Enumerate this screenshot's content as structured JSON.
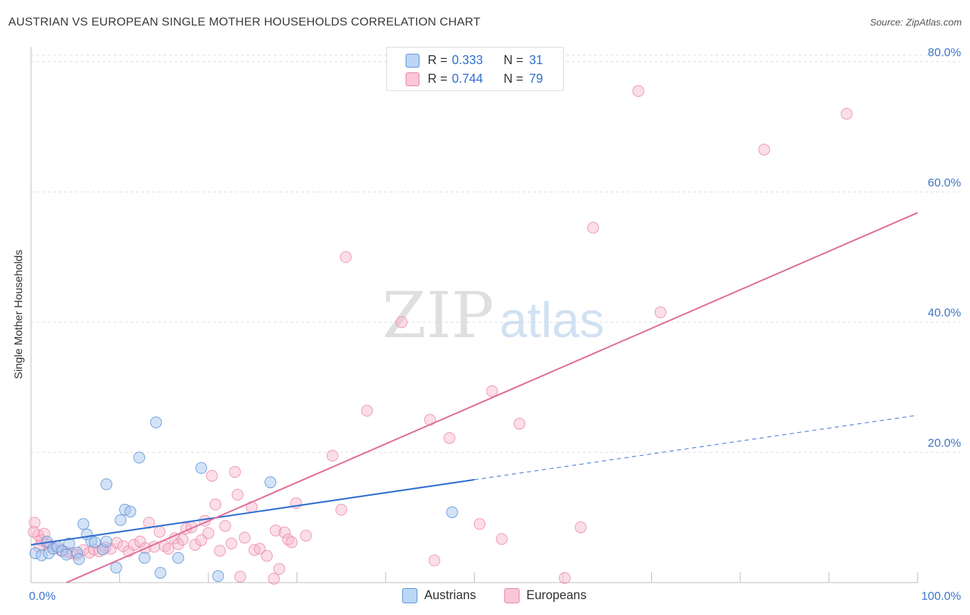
{
  "header": {
    "title": "AUSTRIAN VS EUROPEAN SINGLE MOTHER HOUSEHOLDS CORRELATION CHART",
    "source": "Source: ZipAtlas.com"
  },
  "watermark": {
    "zip": "ZIP",
    "atlas": "atlas"
  },
  "legend": {
    "austrians": {
      "r_label": "R =",
      "r_value": "0.333",
      "n_label": "N =",
      "n_value": "31"
    },
    "europeans": {
      "r_label": "R =",
      "r_value": "0.744",
      "n_label": "N =",
      "n_value": "79"
    }
  },
  "bottom_legend": {
    "austrians": "Austrians",
    "europeans": "Europeans"
  },
  "colors": {
    "austrians_fill": "#a8c8f0",
    "austrians_stroke": "#5b8fd6",
    "austrians_line": "#2f6fd0",
    "europeans_fill": "#f7b6c9",
    "europeans_stroke": "#e882a3",
    "europeans_line": "#e0709a",
    "tick_text": "#3f76c8",
    "grid": "#dddddd"
  },
  "chart_data": {
    "type": "scatter",
    "title": "AUSTRIAN VS EUROPEAN SINGLE MOTHER HOUSEHOLDS CORRELATION CHART",
    "xlabel": "",
    "ylabel": "Single Mother Households",
    "xlim": [
      0,
      100
    ],
    "ylim": [
      0,
      81
    ],
    "x_tick_labels": [
      {
        "value": 0,
        "label": "0.0%"
      },
      {
        "value": 100,
        "label": "100.0%"
      }
    ],
    "y_tick_labels": [
      {
        "value": 20,
        "label": "20.0%"
      },
      {
        "value": 40,
        "label": "40.0%"
      },
      {
        "value": 60,
        "label": "60.0%"
      },
      {
        "value": 80,
        "label": "80.0%"
      }
    ],
    "x_minor_ticks": [
      10,
      20,
      30,
      40,
      50,
      60,
      70,
      80,
      90
    ],
    "series": [
      {
        "name": "Austrians",
        "r": 0.333,
        "n": 31,
        "trend": {
          "x0": 0,
          "y0": 5.8,
          "x1": 50,
          "y1": 15.8,
          "dashed_to_x": 100,
          "dashed_to_y": 25.7
        },
        "points": [
          [
            0.5,
            4.5
          ],
          [
            1.2,
            4.2
          ],
          [
            1.8,
            6.3
          ],
          [
            2.0,
            4.5
          ],
          [
            2.5,
            5.2
          ],
          [
            3.0,
            5.5
          ],
          [
            3.5,
            4.9
          ],
          [
            4.0,
            4.3
          ],
          [
            4.3,
            6.0
          ],
          [
            5.2,
            4.6
          ],
          [
            5.4,
            3.6
          ],
          [
            5.9,
            9.0
          ],
          [
            6.3,
            7.4
          ],
          [
            6.8,
            6.4
          ],
          [
            7.2,
            6.2
          ],
          [
            8.1,
            5.1
          ],
          [
            8.5,
            6.3
          ],
          [
            8.5,
            15.1
          ],
          [
            9.6,
            2.3
          ],
          [
            10.1,
            9.6
          ],
          [
            10.6,
            11.2
          ],
          [
            11.2,
            10.9
          ],
          [
            12.2,
            19.2
          ],
          [
            12.8,
            3.8
          ],
          [
            14.1,
            24.6
          ],
          [
            14.6,
            1.5
          ],
          [
            16.6,
            3.8
          ],
          [
            19.2,
            17.6
          ],
          [
            21.1,
            1.0
          ],
          [
            27.0,
            15.4
          ],
          [
            47.5,
            10.8
          ]
        ]
      },
      {
        "name": "Europeans",
        "r": 0.744,
        "n": 79,
        "trend": {
          "x0": 4,
          "y0": 0,
          "x1": 100,
          "y1": 56.8
        },
        "points": [
          [
            0.4,
            9.2
          ],
          [
            0.8,
            7.3
          ],
          [
            1.2,
            6.5
          ],
          [
            1.8,
            5.9
          ],
          [
            2.2,
            5.6
          ],
          [
            2.8,
            5.3
          ],
          [
            3.4,
            4.9
          ],
          [
            4.0,
            4.7
          ],
          [
            4.6,
            4.5
          ],
          [
            5.2,
            4.3
          ],
          [
            5.9,
            5.0
          ],
          [
            6.6,
            4.6
          ],
          [
            7.1,
            5.1
          ],
          [
            7.7,
            4.8
          ],
          [
            8.4,
            5.4
          ],
          [
            9.0,
            5.2
          ],
          [
            9.7,
            6.1
          ],
          [
            10.4,
            5.6
          ],
          [
            11.0,
            4.8
          ],
          [
            11.6,
            5.8
          ],
          [
            12.3,
            6.3
          ],
          [
            12.9,
            5.3
          ],
          [
            13.3,
            9.2
          ],
          [
            13.9,
            5.5
          ],
          [
            14.5,
            7.8
          ],
          [
            15.1,
            5.6
          ],
          [
            15.5,
            5.2
          ],
          [
            16.2,
            6.8
          ],
          [
            16.6,
            5.9
          ],
          [
            17.1,
            6.6
          ],
          [
            17.5,
            8.3
          ],
          [
            18.1,
            8.5
          ],
          [
            18.5,
            5.8
          ],
          [
            19.2,
            6.5
          ],
          [
            19.6,
            9.5
          ],
          [
            20.0,
            7.6
          ],
          [
            20.4,
            16.4
          ],
          [
            20.8,
            12.0
          ],
          [
            21.3,
            4.9
          ],
          [
            21.9,
            8.7
          ],
          [
            22.6,
            6.0
          ],
          [
            23.0,
            17.0
          ],
          [
            23.3,
            13.5
          ],
          [
            23.6,
            0.9
          ],
          [
            24.1,
            6.9
          ],
          [
            24.9,
            11.6
          ],
          [
            25.2,
            5.0
          ],
          [
            25.8,
            5.2
          ],
          [
            26.6,
            4.1
          ],
          [
            27.4,
            0.6
          ],
          [
            27.6,
            8.0
          ],
          [
            28.0,
            2.1
          ],
          [
            28.6,
            7.7
          ],
          [
            29.0,
            6.6
          ],
          [
            29.4,
            6.2
          ],
          [
            29.9,
            12.2
          ],
          [
            31.0,
            7.2
          ],
          [
            34.0,
            19.5
          ],
          [
            35.0,
            11.2
          ],
          [
            35.5,
            50.0
          ],
          [
            37.9,
            26.4
          ],
          [
            41.8,
            40.0
          ],
          [
            45.0,
            25.0
          ],
          [
            45.5,
            3.4
          ],
          [
            47.2,
            22.2
          ],
          [
            50.6,
            9.0
          ],
          [
            52.0,
            29.4
          ],
          [
            53.1,
            6.7
          ],
          [
            55.1,
            24.4
          ],
          [
            60.2,
            0.7
          ],
          [
            62.0,
            8.5
          ],
          [
            63.4,
            54.5
          ],
          [
            68.5,
            75.5
          ],
          [
            71.0,
            41.5
          ],
          [
            82.7,
            66.5
          ],
          [
            92.0,
            72.0
          ],
          [
            0.3,
            7.8
          ],
          [
            1.5,
            7.5
          ],
          [
            0.9,
            5.5
          ]
        ]
      }
    ]
  }
}
